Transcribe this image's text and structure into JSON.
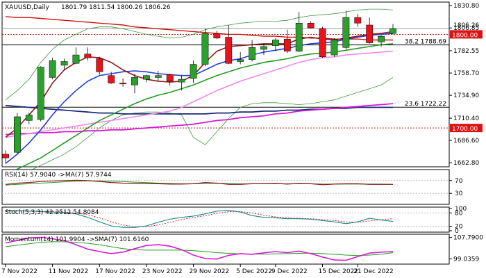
{
  "header": {
    "symbol": "XAUUSD,Daily",
    "ohlc": "1801.79 1811.54 1800.26 1806.26"
  },
  "colors": {
    "bull": "#2ca02c",
    "bear": "#e8131b",
    "ma_fast": "#8b1a1a",
    "ma_mid": "#1f3fd6",
    "ma_slow": "#229a22",
    "ma_pink": "#ee88ee",
    "ma_magenta": "#d61ad6",
    "ma_navy": "#1a2a7a",
    "ma_red": "#cc1111",
    "bollinger": "#3a9a3a"
  },
  "chart_data": {
    "type": "candlestick",
    "price_axis": {
      "ticks": [
        "1830.80",
        "1806.85",
        "1782.55",
        "1758.70",
        "1734.90",
        "1710.40",
        "1686.60",
        "1662.80"
      ],
      "ylim": [
        1660,
        1833
      ],
      "current_price_label": "1806.26",
      "badge_label": "1800.00",
      "badge_bottom_label": "1700.00"
    },
    "date_ticks": [
      "7 Nov 2022",
      "11 Nov 2022",
      "17 Nov 2022",
      "23 Nov 2022",
      "29 Nov 2022",
      "5 Dec 2022",
      "9 Dec 2022",
      "15 Dec 2022",
      "21 Dec 2022"
    ],
    "candles": [
      {
        "o": 1672,
        "h": 1676,
        "l": 1663,
        "c": 1668
      },
      {
        "o": 1674,
        "h": 1716,
        "l": 1673,
        "c": 1712
      },
      {
        "o": 1708,
        "h": 1716,
        "l": 1704,
        "c": 1714
      },
      {
        "o": 1709,
        "h": 1766,
        "l": 1707,
        "c": 1765
      },
      {
        "o": 1754,
        "h": 1775,
        "l": 1752,
        "c": 1772
      },
      {
        "o": 1767,
        "h": 1774,
        "l": 1762,
        "c": 1771
      },
      {
        "o": 1769,
        "h": 1786,
        "l": 1768,
        "c": 1778
      },
      {
        "o": 1779,
        "h": 1786,
        "l": 1772,
        "c": 1775
      },
      {
        "o": 1774,
        "h": 1776,
        "l": 1757,
        "c": 1760
      },
      {
        "o": 1756,
        "h": 1760,
        "l": 1747,
        "c": 1748
      },
      {
        "o": 1748,
        "h": 1753,
        "l": 1744,
        "c": 1747
      },
      {
        "o": 1746,
        "h": 1758,
        "l": 1737,
        "c": 1754
      },
      {
        "o": 1752,
        "h": 1757,
        "l": 1749,
        "c": 1756
      },
      {
        "o": 1754,
        "h": 1761,
        "l": 1750,
        "c": 1756
      },
      {
        "o": 1757,
        "h": 1758,
        "l": 1745,
        "c": 1750
      },
      {
        "o": 1749,
        "h": 1756,
        "l": 1740,
        "c": 1752
      },
      {
        "o": 1753,
        "h": 1772,
        "l": 1748,
        "c": 1768
      },
      {
        "o": 1768,
        "h": 1806,
        "l": 1766,
        "c": 1801
      },
      {
        "o": 1801,
        "h": 1804,
        "l": 1795,
        "c": 1796
      },
      {
        "o": 1797,
        "h": 1810,
        "l": 1768,
        "c": 1769
      },
      {
        "o": 1771,
        "h": 1781,
        "l": 1768,
        "c": 1773
      },
      {
        "o": 1773,
        "h": 1794,
        "l": 1771,
        "c": 1786
      },
      {
        "o": 1784,
        "h": 1790,
        "l": 1778,
        "c": 1787
      },
      {
        "o": 1788,
        "h": 1796,
        "l": 1782,
        "c": 1794
      },
      {
        "o": 1795,
        "h": 1805,
        "l": 1780,
        "c": 1782
      },
      {
        "o": 1782,
        "h": 1824,
        "l": 1781,
        "c": 1812
      },
      {
        "o": 1812,
        "h": 1814,
        "l": 1806,
        "c": 1807
      },
      {
        "o": 1806,
        "h": 1808,
        "l": 1775,
        "c": 1776
      },
      {
        "o": 1778,
        "h": 1796,
        "l": 1776,
        "c": 1794
      },
      {
        "o": 1786,
        "h": 1825,
        "l": 1784,
        "c": 1818
      },
      {
        "o": 1818,
        "h": 1822,
        "l": 1808,
        "c": 1812
      },
      {
        "o": 1810,
        "h": 1818,
        "l": 1790,
        "c": 1791
      },
      {
        "o": 1792,
        "h": 1799,
        "l": 1787,
        "c": 1798
      },
      {
        "o": 1801,
        "h": 1811,
        "l": 1800,
        "c": 1806
      }
    ],
    "ma_fast": [
      1690,
      1700,
      1714,
      1728,
      1748,
      1762,
      1770,
      1776,
      1775,
      1770,
      1762,
      1756,
      1752,
      1750,
      1749,
      1750,
      1756,
      1770,
      1782,
      1787,
      1788,
      1789,
      1790,
      1790,
      1790,
      1795,
      1797,
      1795,
      1794,
      1796,
      1798,
      1800,
      1801,
      1803
    ],
    "ma_mid": [
      1662,
      1672,
      1684,
      1698,
      1714,
      1728,
      1740,
      1750,
      1756,
      1758,
      1760,
      1761,
      1760,
      1758,
      1757,
      1756,
      1756,
      1762,
      1768,
      1772,
      1774,
      1778,
      1781,
      1783,
      1785,
      1788,
      1790,
      1791,
      1792,
      1795,
      1797,
      1799,
      1800,
      1801
    ],
    "ma_slow": [
      1650,
      1656,
      1662,
      1668,
      1676,
      1684,
      1692,
      1700,
      1708,
      1714,
      1720,
      1726,
      1731,
      1735,
      1738,
      1742,
      1746,
      1751,
      1756,
      1760,
      1764,
      1767,
      1770,
      1772,
      1774,
      1777,
      1779,
      1780,
      1781,
      1783,
      1785,
      1787,
      1789,
      1790
    ],
    "ma_pink": [
      1690,
      1692,
      1694,
      1696,
      1698,
      1700,
      1702,
      1704,
      1706,
      1708,
      1710,
      1712,
      1714,
      1716,
      1718,
      1722,
      1728,
      1734,
      1740,
      1745,
      1750,
      1754,
      1758,
      1762,
      1766,
      1770,
      1773,
      1775,
      1776,
      1778,
      1779,
      1780,
      1781,
      1782
    ],
    "ma_magenta": [
      1693,
      1694,
      1694,
      1695,
      1695,
      1696,
      1696,
      1697,
      1697,
      1698,
      1698,
      1699,
      1700,
      1701,
      1702,
      1703,
      1704,
      1706,
      1708,
      1709,
      1711,
      1712,
      1713,
      1715,
      1716,
      1718,
      1719,
      1720,
      1721,
      1722,
      1723,
      1724,
      1725,
      1726
    ],
    "ma_navy": [
      1724,
      1723,
      1722,
      1721,
      1720,
      1719,
      1718,
      1717,
      1716,
      1716,
      1715,
      1715,
      1715,
      1715,
      1715,
      1715,
      1715,
      1715,
      1716,
      1716,
      1717,
      1717,
      1718,
      1718,
      1719,
      1719,
      1720,
      1720,
      1721,
      1721,
      1722,
      1722,
      1722,
      1722
    ],
    "ma_red": [
      1819,
      1818,
      1818,
      1817,
      1816,
      1815,
      1814,
      1813,
      1812,
      1811,
      1810,
      1808,
      1807,
      1806,
      1805,
      1804,
      1803,
      1802,
      1801,
      1800,
      1800,
      1799,
      1798,
      1798,
      1797,
      1797,
      1796,
      1796,
      1795,
      1795,
      1795,
      1794,
      1794,
      1794
    ],
    "bb_upper": [
      1730,
      1740,
      1752,
      1770,
      1784,
      1794,
      1800,
      1806,
      1808,
      1808,
      1806,
      1803,
      1800,
      1798,
      1796,
      1797,
      1800,
      1805,
      1808,
      1810,
      1812,
      1813,
      1814,
      1814,
      1815,
      1818,
      1820,
      1821,
      1822,
      1824,
      1826,
      1827,
      1827,
      1826
    ],
    "bb_lower": [
      1648,
      1650,
      1654,
      1660,
      1666,
      1672,
      1680,
      1690,
      1700,
      1708,
      1714,
      1716,
      1717,
      1717,
      1716,
      1714,
      1690,
      1682,
      1696,
      1710,
      1722,
      1726,
      1727,
      1727,
      1726,
      1725,
      1726,
      1728,
      1730,
      1734,
      1738,
      1742,
      1746,
      1754
    ],
    "hlines": [
      {
        "label": "38.2 1788.69",
        "value": 1788.69,
        "color": "#000000"
      },
      {
        "label": "23.6 1722.22",
        "value": 1722.22,
        "color": "#000000"
      },
      {
        "label": "",
        "value": 1800,
        "color": "#cc1111",
        "dashed": true
      },
      {
        "label": "",
        "value": 1700,
        "color": "#cc1111",
        "dashed": true
      },
      {
        "label": "",
        "value": 1806.26,
        "color": "#999999",
        "dashed": false
      }
    ],
    "rsi": {
      "label": "RSI(14) 57.9040 ->MA(7) 57.9744",
      "ylim": [
        0,
        100
      ],
      "ticks": [
        "70",
        "30"
      ],
      "values": [
        58,
        62,
        64,
        67,
        69,
        70,
        71,
        70,
        67,
        64,
        62,
        61,
        60,
        60,
        59,
        59,
        60,
        64,
        62,
        58,
        58,
        60,
        60,
        61,
        59,
        61,
        60,
        57,
        59,
        60,
        60,
        58,
        58,
        58
      ],
      "ma": [
        56,
        58,
        60,
        62,
        64,
        66,
        68,
        69,
        69,
        68,
        67,
        65,
        64,
        62,
        61,
        60,
        60,
        61,
        61,
        61,
        60,
        60,
        60,
        60,
        60,
        60,
        60,
        59,
        59,
        59,
        59,
        59,
        59,
        58
      ]
    },
    "stoch": {
      "label": "Stoch(5,3,3) 42.2512 54.8084",
      "ylim": [
        0,
        100
      ],
      "ticks": [
        "100",
        "80",
        "20",
        "0"
      ],
      "k": [
        92,
        90,
        88,
        86,
        84,
        82,
        76,
        60,
        40,
        22,
        15,
        14,
        22,
        38,
        52,
        60,
        66,
        76,
        88,
        92,
        84,
        68,
        60,
        58,
        54,
        54,
        52,
        46,
        40,
        32,
        40,
        56,
        48,
        42
      ],
      "d": [
        88,
        89,
        90,
        88,
        86,
        84,
        80,
        72,
        58,
        40,
        26,
        18,
        18,
        26,
        38,
        50,
        60,
        68,
        78,
        86,
        86,
        80,
        70,
        62,
        58,
        56,
        54,
        50,
        46,
        40,
        38,
        44,
        50,
        54
      ]
    },
    "momentum": {
      "label": "Momentum(14) 101.9904 ->SMA(7) 101.6160",
      "ylim": [
        97.5,
        108.5
      ],
      "ticks": [
        "107.7900",
        "99.0359"
      ],
      "values": [
        105.5,
        106.5,
        107.6,
        107.8,
        107.2,
        106.5,
        104.8,
        103.0,
        102.0,
        101.2,
        101.8,
        103.2,
        104.5,
        104.8,
        104.2,
        102.8,
        100.6,
        99.2,
        99.0,
        100.5,
        101.2,
        100.9,
        101.5,
        102.0,
        101.6,
        102.2,
        101.2,
        99.8,
        98.6,
        98.5,
        100.0,
        101.4,
        101.8,
        102.0
      ],
      "sma": [
        104.0,
        104.6,
        105.2,
        105.8,
        106.0,
        106.0,
        105.8,
        105.4,
        104.8,
        104.0,
        103.2,
        102.8,
        102.6,
        102.6,
        102.6,
        102.6,
        102.4,
        102.0,
        101.6,
        101.3,
        101.1,
        101.0,
        101.0,
        101.1,
        101.2,
        101.3,
        101.4,
        101.2,
        100.9,
        100.6,
        100.4,
        100.6,
        100.9,
        101.6
      ]
    }
  }
}
